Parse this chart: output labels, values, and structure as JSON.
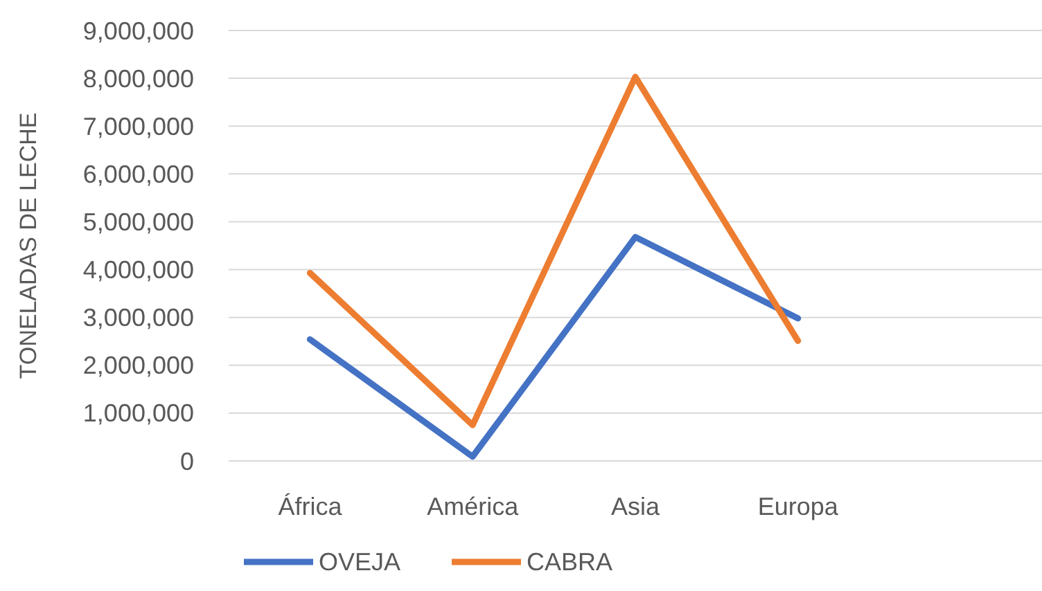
{
  "chart_data": {
    "type": "line",
    "ylabel": "TONELADAS DE LECHE",
    "categories": [
      "África",
      "América",
      "Asia",
      "Europa",
      null
    ],
    "series": [
      {
        "name": "OVEJA",
        "color": "#4472c4",
        "values": [
          2540000,
          90000,
          4680000,
          2980000,
          null
        ]
      },
      {
        "name": "CABRA",
        "color": "#ed7d31",
        "values": [
          3930000,
          750000,
          8030000,
          2510000,
          null
        ]
      }
    ],
    "ylim": [
      0,
      9000000
    ],
    "yticks": [
      {
        "value": 0,
        "label": "0"
      },
      {
        "value": 1000000,
        "label": "1,000,000"
      },
      {
        "value": 2000000,
        "label": "2,000,000"
      },
      {
        "value": 3000000,
        "label": "3,000,000"
      },
      {
        "value": 4000000,
        "label": "4,000,000"
      },
      {
        "value": 5000000,
        "label": "5,000,000"
      },
      {
        "value": 6000000,
        "label": "6,000,000"
      },
      {
        "value": 7000000,
        "label": "7,000,000"
      },
      {
        "value": 8000000,
        "label": "8,000,000"
      },
      {
        "value": 9000000,
        "label": "9,000,000"
      }
    ],
    "grid": "y",
    "legend": "bottom",
    "marker": "none",
    "line_style": "solid"
  }
}
